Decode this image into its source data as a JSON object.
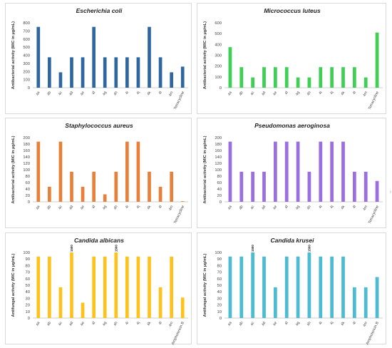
{
  "chart_data": [
    {
      "type": "bar",
      "title": "Escherichia coli",
      "ylabel": "Antibacterial activity (MIC in µg/mL)",
      "categories": [
        "4a",
        "4b",
        "4c",
        "4d",
        "4e",
        "4f",
        "4g",
        "4h",
        "4i",
        "4j",
        "4k",
        "4l",
        "4m",
        "Tetracycline"
      ],
      "values": [
        750,
        375,
        190,
        375,
        375,
        750,
        375,
        375,
        375,
        375,
        750,
        375,
        190,
        260
      ],
      "ylim": [
        0,
        800
      ],
      "yticks": [
        0,
        100,
        200,
        300,
        400,
        500,
        600,
        700,
        800
      ],
      "color": "#2e66a0",
      "grid": false,
      "data_labels": []
    },
    {
      "type": "bar",
      "title": "Micrococcus luteus",
      "ylabel": "Antibacterial activity (MIC in µg/mL)",
      "categories": [
        "4a",
        "4b",
        "4c",
        "4d",
        "4e",
        "4f",
        "4g",
        "4h",
        "4i",
        "4j",
        "4k",
        "4l",
        "4m",
        "Tetracycline"
      ],
      "values": [
        375,
        190,
        95,
        190,
        190,
        190,
        95,
        95,
        190,
        190,
        190,
        190,
        95,
        510
      ],
      "ylim": [
        0,
        600
      ],
      "yticks": [
        0,
        100,
        200,
        300,
        400,
        500,
        600
      ],
      "color": "#3fcf55",
      "grid": false,
      "data_labels": []
    },
    {
      "type": "bar",
      "title": "Staphylococcus aureus",
      "ylabel": "Antibacterial activity (MIC in µg/mL)",
      "categories": [
        "4a",
        "4b",
        "4c",
        "4d",
        "4e",
        "4f",
        "4g",
        "4h",
        "4i",
        "4j",
        "4k",
        "4l",
        "4m",
        "Tetracycline"
      ],
      "values": [
        187.5,
        46.9,
        187.5,
        93.75,
        46.9,
        93.75,
        23.4,
        93.75,
        187.5,
        187.5,
        93.75,
        46.9,
        93.75,
        1.5
      ],
      "ylim": [
        0,
        200
      ],
      "yticks": [
        0,
        20,
        40,
        60,
        80,
        100,
        120,
        140,
        160,
        180,
        200
      ],
      "color": "#e8803a",
      "grid": false,
      "data_labels": []
    },
    {
      "type": "bar",
      "title": "Pseudomonas aeroginosa",
      "ylabel": "Antibacterial activity (MIC in µg/mL)",
      "categories": [
        "4a",
        "4b",
        "4c",
        "4d",
        "4e",
        "4f",
        "4g",
        "4h",
        "4i",
        "4j",
        "4k",
        "4l",
        "4m",
        "Tetracycline"
      ],
      "values": [
        187.5,
        93.75,
        93.75,
        93.75,
        187.5,
        187.5,
        187.5,
        93.75,
        187.5,
        187.5,
        187.5,
        93.75,
        93.75,
        65
      ],
      "ylim": [
        0,
        200
      ],
      "yticks": [
        0,
        20,
        40,
        60,
        80,
        100,
        120,
        140,
        160,
        180,
        200
      ],
      "color": "#9b6fe0",
      "grid": false,
      "data_labels": []
    },
    {
      "type": "bar",
      "title": "Candida albicans",
      "ylabel": "Antifungal activity (MIC in µg/mL)",
      "categories": [
        "4a",
        "4b",
        "4c",
        "4d",
        "4e",
        "4f",
        "4g",
        "4h",
        "4i",
        "4j",
        "4k",
        "4l",
        "4m",
        "Amphotericin B"
      ],
      "values": [
        93.75,
        93.75,
        46.9,
        100,
        23.4,
        93.75,
        93.75,
        100,
        93.75,
        93.75,
        93.75,
        46.9,
        93.75,
        31.25
      ],
      "ylim": [
        0,
        100
      ],
      "yticks": [
        0,
        10,
        20,
        30,
        40,
        50,
        60,
        70,
        80,
        90,
        100
      ],
      "color": "#ffc21a",
      "grid": false,
      "data_labels": [
        {
          "index": 3,
          "text": "1500"
        },
        {
          "index": 7,
          "text": "1500"
        }
      ]
    },
    {
      "type": "bar",
      "title": "Candida krusei",
      "ylabel": "Antifungal activity (MIC in µg/mL)",
      "categories": [
        "4a",
        "4b",
        "4c",
        "4d",
        "4e",
        "4f",
        "4g",
        "4h",
        "4i",
        "4j",
        "4k",
        "4l",
        "4m",
        "Amphotericin B"
      ],
      "values": [
        93.75,
        93.75,
        100,
        93.75,
        46.9,
        93.75,
        93.75,
        100,
        93.75,
        93.75,
        93.75,
        46.9,
        46.9,
        62.5
      ],
      "ylim": [
        0,
        100
      ],
      "yticks": [
        0,
        10,
        20,
        30,
        40,
        50,
        60,
        70,
        80,
        90,
        100
      ],
      "color": "#4bbcd1",
      "grid": false,
      "data_labels": [
        {
          "index": 2,
          "text": "1500"
        },
        {
          "index": 7,
          "text": "1500"
        }
      ]
    }
  ]
}
